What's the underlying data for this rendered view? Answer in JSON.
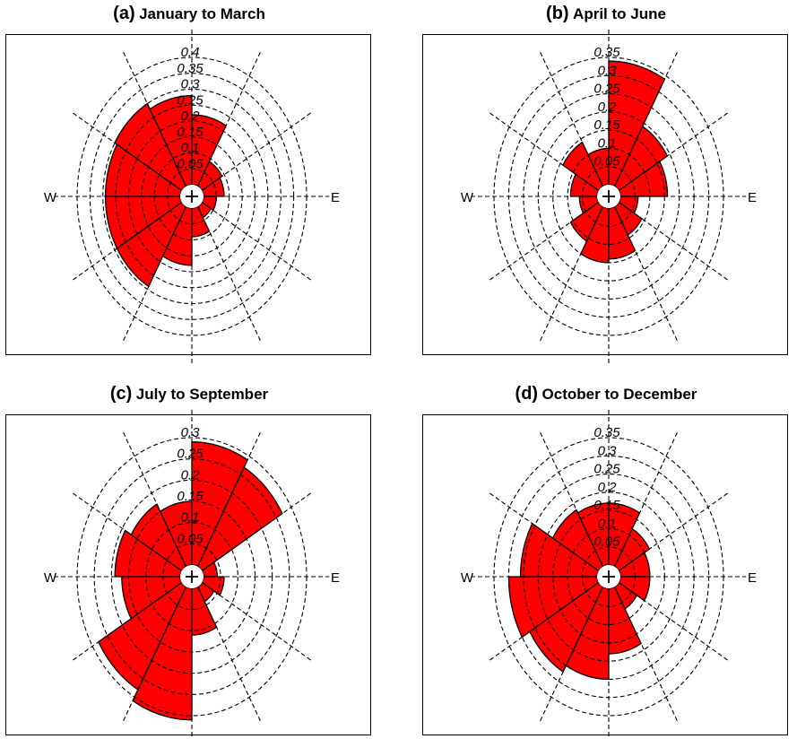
{
  "chart_data": [
    {
      "type": "rose",
      "label": "(a)",
      "title": "January to March",
      "direction_labels": [
        "W",
        "E"
      ],
      "rings": [
        0.05,
        0.1,
        0.15,
        0.2,
        0.25,
        0.3,
        0.35,
        0.4
      ],
      "ring_labels": [
        "0.05",
        "0.1",
        "0.15",
        "0.2",
        "0.25",
        "0.3",
        "0.35",
        "0.4"
      ],
      "sector_count": 12,
      "values": [
        0.22,
        0.09,
        0.08,
        0.05,
        0.04,
        0.09,
        0.18,
        0.29,
        0.29,
        0.29,
        0.3,
        0.28
      ],
      "bar_color": "#ff0000"
    },
    {
      "type": "rose",
      "label": "(b)",
      "title": "April to June",
      "direction_labels": [
        "W",
        "E"
      ],
      "rings": [
        0.05,
        0.1,
        0.15,
        0.2,
        0.25,
        0.3,
        0.35
      ],
      "ring_labels": [
        "0.05",
        "0.1",
        "0.15",
        "0.2",
        "0.25",
        "0.3",
        "0.35"
      ],
      "sector_count": 12,
      "values": [
        0.34,
        0.19,
        0.16,
        0.06,
        0.09,
        0.14,
        0.15,
        0.11,
        0.06,
        0.09,
        0.14,
        0.1
      ],
      "bar_color": "#ff0000"
    },
    {
      "type": "rose",
      "label": "(c)",
      "title": "July to September",
      "direction_labels": [
        "W",
        "E"
      ],
      "rings": [
        0.05,
        0.1,
        0.15,
        0.2,
        0.25,
        0.3
      ],
      "ring_labels": [
        "0.05",
        "0.1",
        "0.15",
        "0.2",
        "0.25",
        "0.3"
      ],
      "sector_count": 12,
      "values": [
        0.29,
        0.27,
        0.04,
        0.06,
        0.04,
        0.11,
        0.31,
        0.28,
        0.17,
        0.19,
        0.17,
        0.15
      ],
      "bar_color": "#ff0000"
    },
    {
      "type": "rose",
      "label": "(d)",
      "title": "October to December",
      "direction_labels": [
        "W",
        "E"
      ],
      "rings": [
        0.05,
        0.1,
        0.15,
        0.2,
        0.25,
        0.3,
        0.35
      ],
      "ring_labels": [
        "0.05",
        "0.1",
        "0.15",
        "0.2",
        "0.25",
        "0.3",
        "0.35"
      ],
      "sector_count": 12,
      "values": [
        0.17,
        0.12,
        0.1,
        0.1,
        0.07,
        0.18,
        0.25,
        0.27,
        0.3,
        0.26,
        0.18,
        0.17
      ],
      "bar_color": "#ff0000"
    }
  ]
}
